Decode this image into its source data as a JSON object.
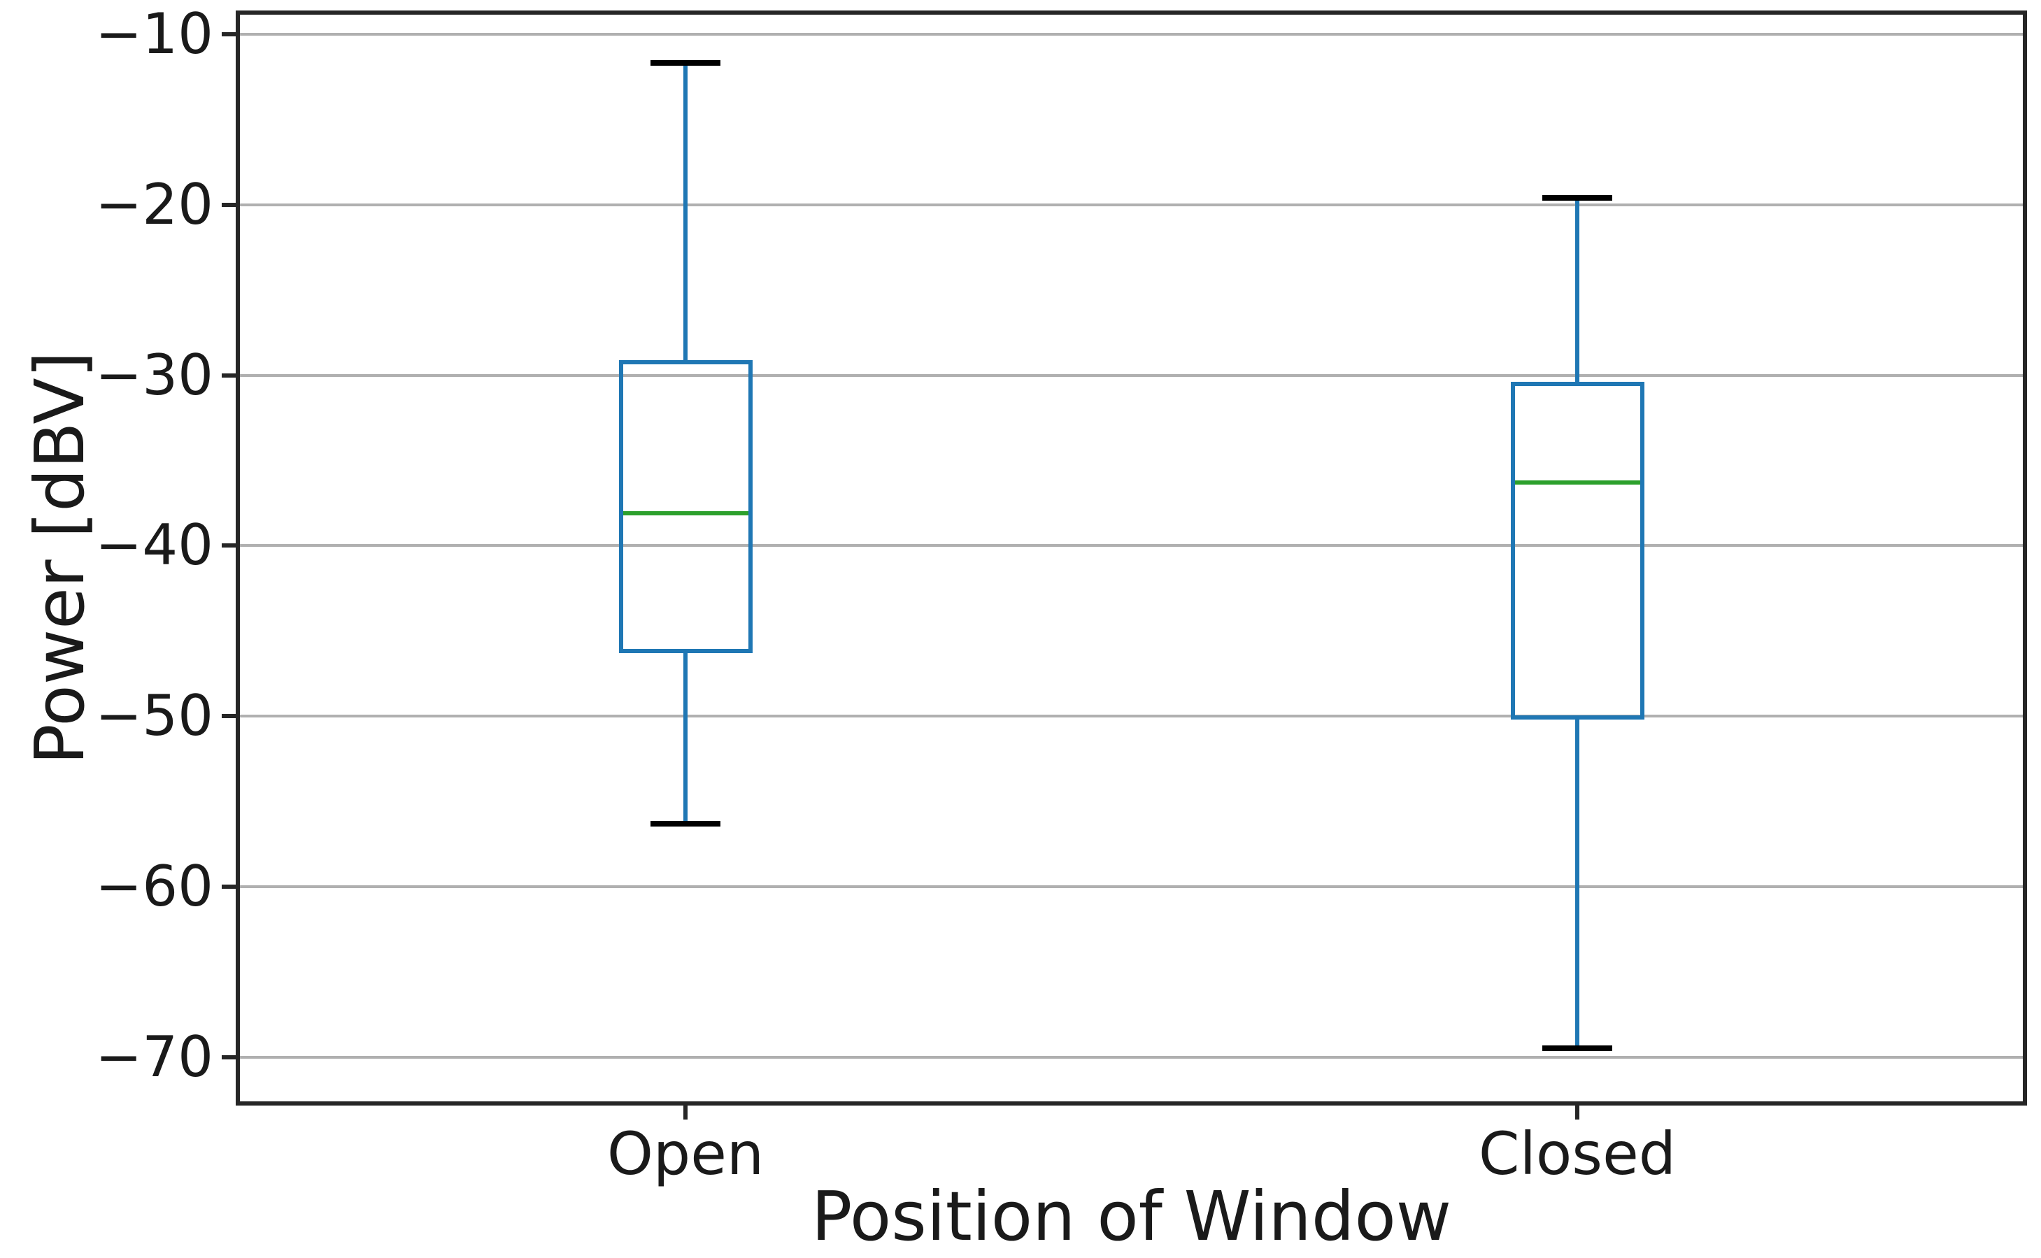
{
  "chart_data": {
    "type": "boxplot",
    "title": "",
    "xlabel": "Position of Window",
    "ylabel": "Power [dBV]",
    "categories": [
      "Open",
      "Closed"
    ],
    "boxes": [
      {
        "category": "Open",
        "whisker_high": -11.7,
        "q3": -29.1,
        "median": -38.1,
        "q1": -46.3,
        "whisker_low": -56.3,
        "outliers": []
      },
      {
        "category": "Closed",
        "whisker_high": -19.6,
        "q3": -30.4,
        "median": -36.3,
        "q1": -50.2,
        "whisker_low": -69.5,
        "outliers": []
      }
    ],
    "ylim": [
      -72.6,
      -8.85
    ],
    "yticks": [
      -10,
      -20,
      -30,
      -40,
      -50,
      -60,
      -70
    ],
    "grid": true,
    "legend": null,
    "layout": {
      "box_width_frac": 0.0748,
      "cap_width_frac": 0.0394
    },
    "colors": {
      "box_edge": "#1f77b4",
      "whisker": "#1f77b4",
      "median": "#2ca02c",
      "cap": "#000000",
      "grid": "#b0b0b0",
      "spine": "#262626",
      "text": "#1a1a1a"
    }
  }
}
